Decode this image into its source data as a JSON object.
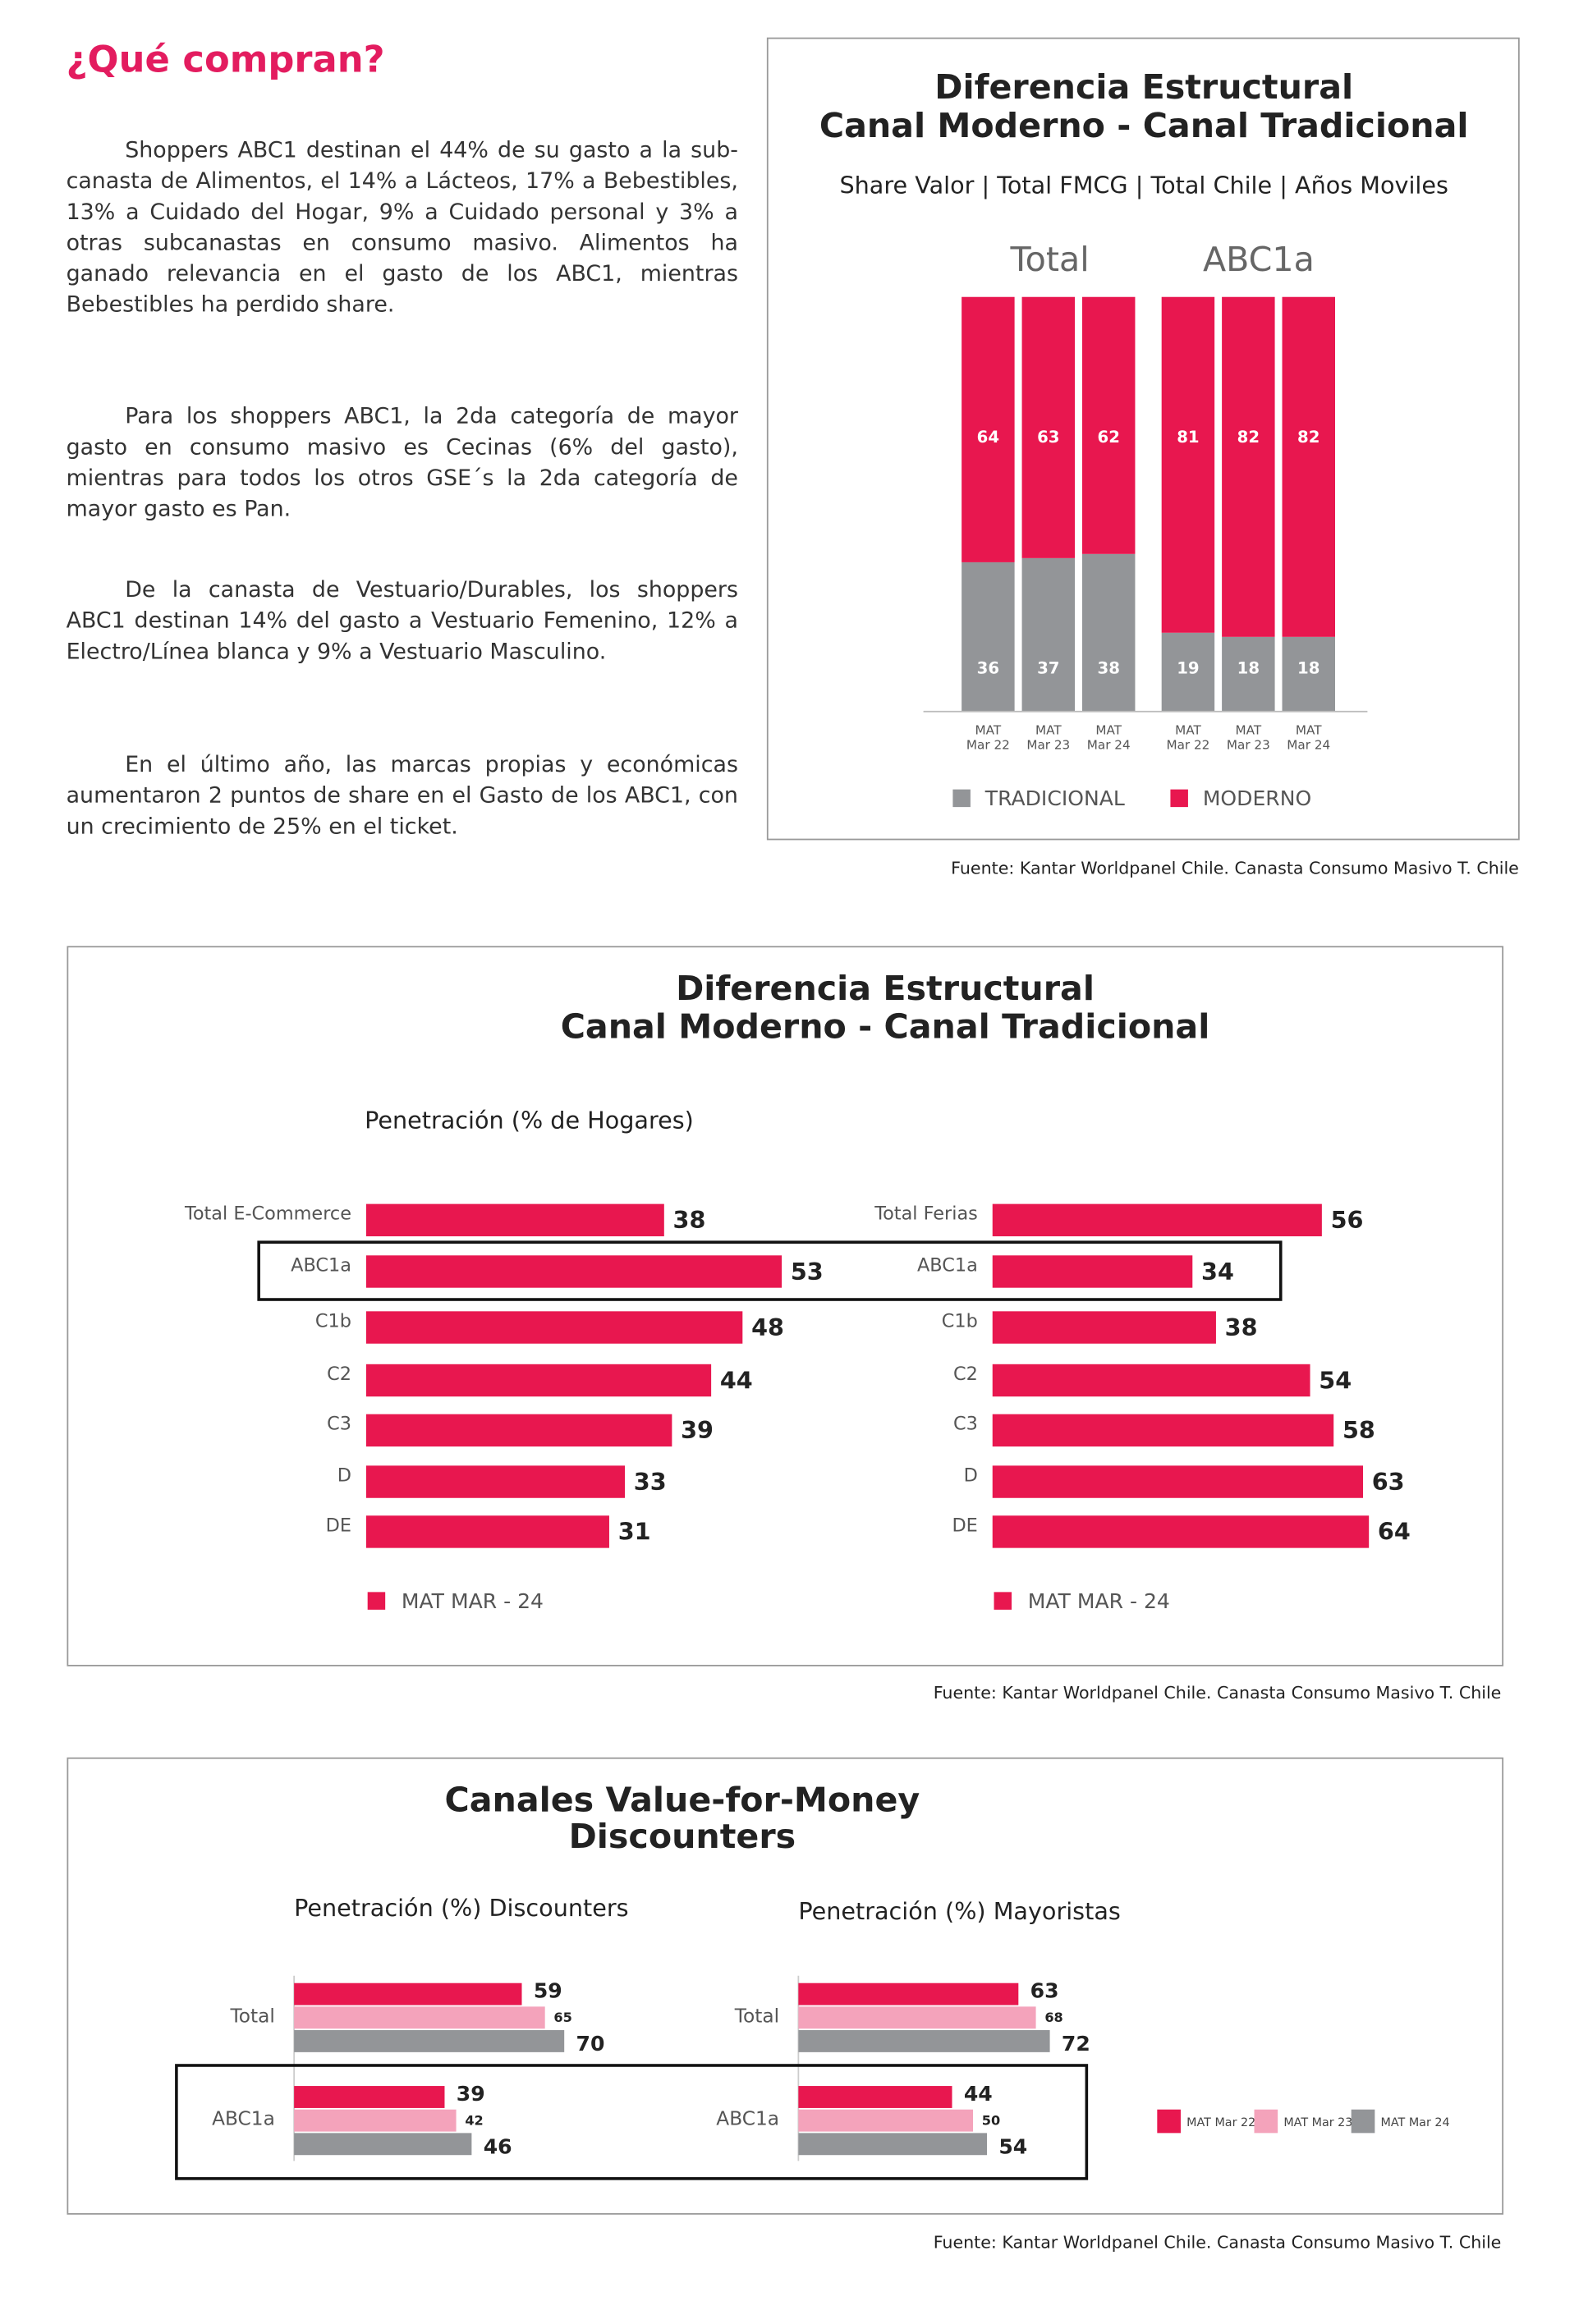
{
  "page": {
    "title": "¿Qué compran?",
    "paragraphs": [
      "Shoppers ABC1 destinan el 44% de su gasto a la sub-canasta de Alimentos, el 14% a Lácteos, 17% a Bebestibles, 13% a Cuidado del Hogar, 9% a Cuidado personal y 3% a otras subcanastas en consumo masivo. Alimentos ha ganado relevancia en el gasto de los ABC1, mientras Bebestibles ha perdido share.",
      "Para los shoppers ABC1,  la 2da categoría de mayor gasto en consumo masivo es Cecinas (6% del gasto), mientras para todos los otros GSE´s la 2da categoría de mayor gasto es Pan.",
      "De la canasta de Vestuario/Durables, los shoppers ABC1 destinan 14% del gasto a Vestuario Femenino, 12% a Electro/Línea blanca y 9% a Vestuario Masculino.",
      "En el último año, las marcas propias y económicas aumentaron 2 puntos de share en el Gasto de los ABC1, con un crecimiento de 25% en el ticket."
    ]
  },
  "chart_data": [
    {
      "type": "stacked-bar",
      "title": [
        "Diferencia Estructural",
        "Canal Moderno - Canal Tradicional"
      ],
      "subtitle": "Share Valor | Total FMCG | Total Chile | Años Moviles",
      "groups": [
        "Total",
        "ABC1a"
      ],
      "categories": [
        [
          "MAT",
          "Mar 22"
        ],
        [
          "MAT",
          "Mar 23"
        ],
        [
          "MAT",
          "Mar 24"
        ],
        [
          "MAT",
          "Mar 22"
        ],
        [
          "MAT",
          "Mar 23"
        ],
        [
          "MAT",
          "Mar 24"
        ]
      ],
      "ylim": [
        0,
        100
      ],
      "series": [
        {
          "name": "TRADICIONAL",
          "color": "#939598",
          "values": [
            36,
            37,
            38,
            19,
            18,
            18
          ]
        },
        {
          "name": "MODERNO",
          "color": "#e8174f",
          "values": [
            64,
            63,
            62,
            81,
            82,
            82
          ]
        }
      ],
      "source": "Fuente: Kantar Worldpanel Chile. Canasta Consumo Masivo T. Chile"
    },
    {
      "type": "hbar",
      "title": [
        "Diferencia Estructural",
        "Canal Moderno - Canal Tradicional"
      ],
      "subtitle": "Penetración (% de Hogares)",
      "panels": [
        {
          "categories": [
            "Total E-Commerce",
            "ABC1a",
            "C1b",
            "C2",
            "C3",
            "D",
            "DE"
          ],
          "xlim": [
            0,
            60
          ],
          "series": [
            {
              "name": "MAT MAR - 24",
              "color": "#e8174f",
              "values": [
                38,
                53,
                48,
                44,
                39,
                33,
                31
              ]
            }
          ]
        },
        {
          "categories": [
            "Total Ferias",
            "ABC1a",
            "C1b",
            "C2",
            "C3",
            "D",
            "DE"
          ],
          "xlim": [
            0,
            80
          ],
          "series": [
            {
              "name": "MAT MAR - 24",
              "color": "#e8174f",
              "values": [
                56,
                34,
                38,
                54,
                58,
                63,
                64
              ]
            }
          ]
        }
      ],
      "source": "Fuente: Kantar Worldpanel Chile. Canasta Consumo Masivo T. Chile"
    },
    {
      "type": "grouped-hbar",
      "title": [
        "Canales Value-for-Money",
        "Discounters"
      ],
      "series": [
        {
          "name": "MAT Mar 22",
          "color": "#e8174f"
        },
        {
          "name": "MAT Mar 23",
          "color": "#f4a3bb"
        },
        {
          "name": "MAT Mar 24",
          "color": "#939598"
        }
      ],
      "panels": [
        {
          "title": "Penetración (%) Discounters",
          "categories": [
            "Total",
            "ABC1a"
          ],
          "xlim": [
            0,
            80
          ],
          "values": [
            [
              59,
              65,
              70
            ],
            [
              39,
              42,
              46
            ]
          ]
        },
        {
          "title": "Penetración (%) Mayoristas",
          "categories": [
            "Total",
            "ABC1a"
          ],
          "xlim": [
            0,
            80
          ],
          "values": [
            [
              63,
              68,
              72
            ],
            [
              44,
              50,
              54
            ]
          ]
        }
      ],
      "source": "Fuente: Kantar Worldpanel Chile. Canasta Consumo Masivo T. Chile"
    }
  ]
}
